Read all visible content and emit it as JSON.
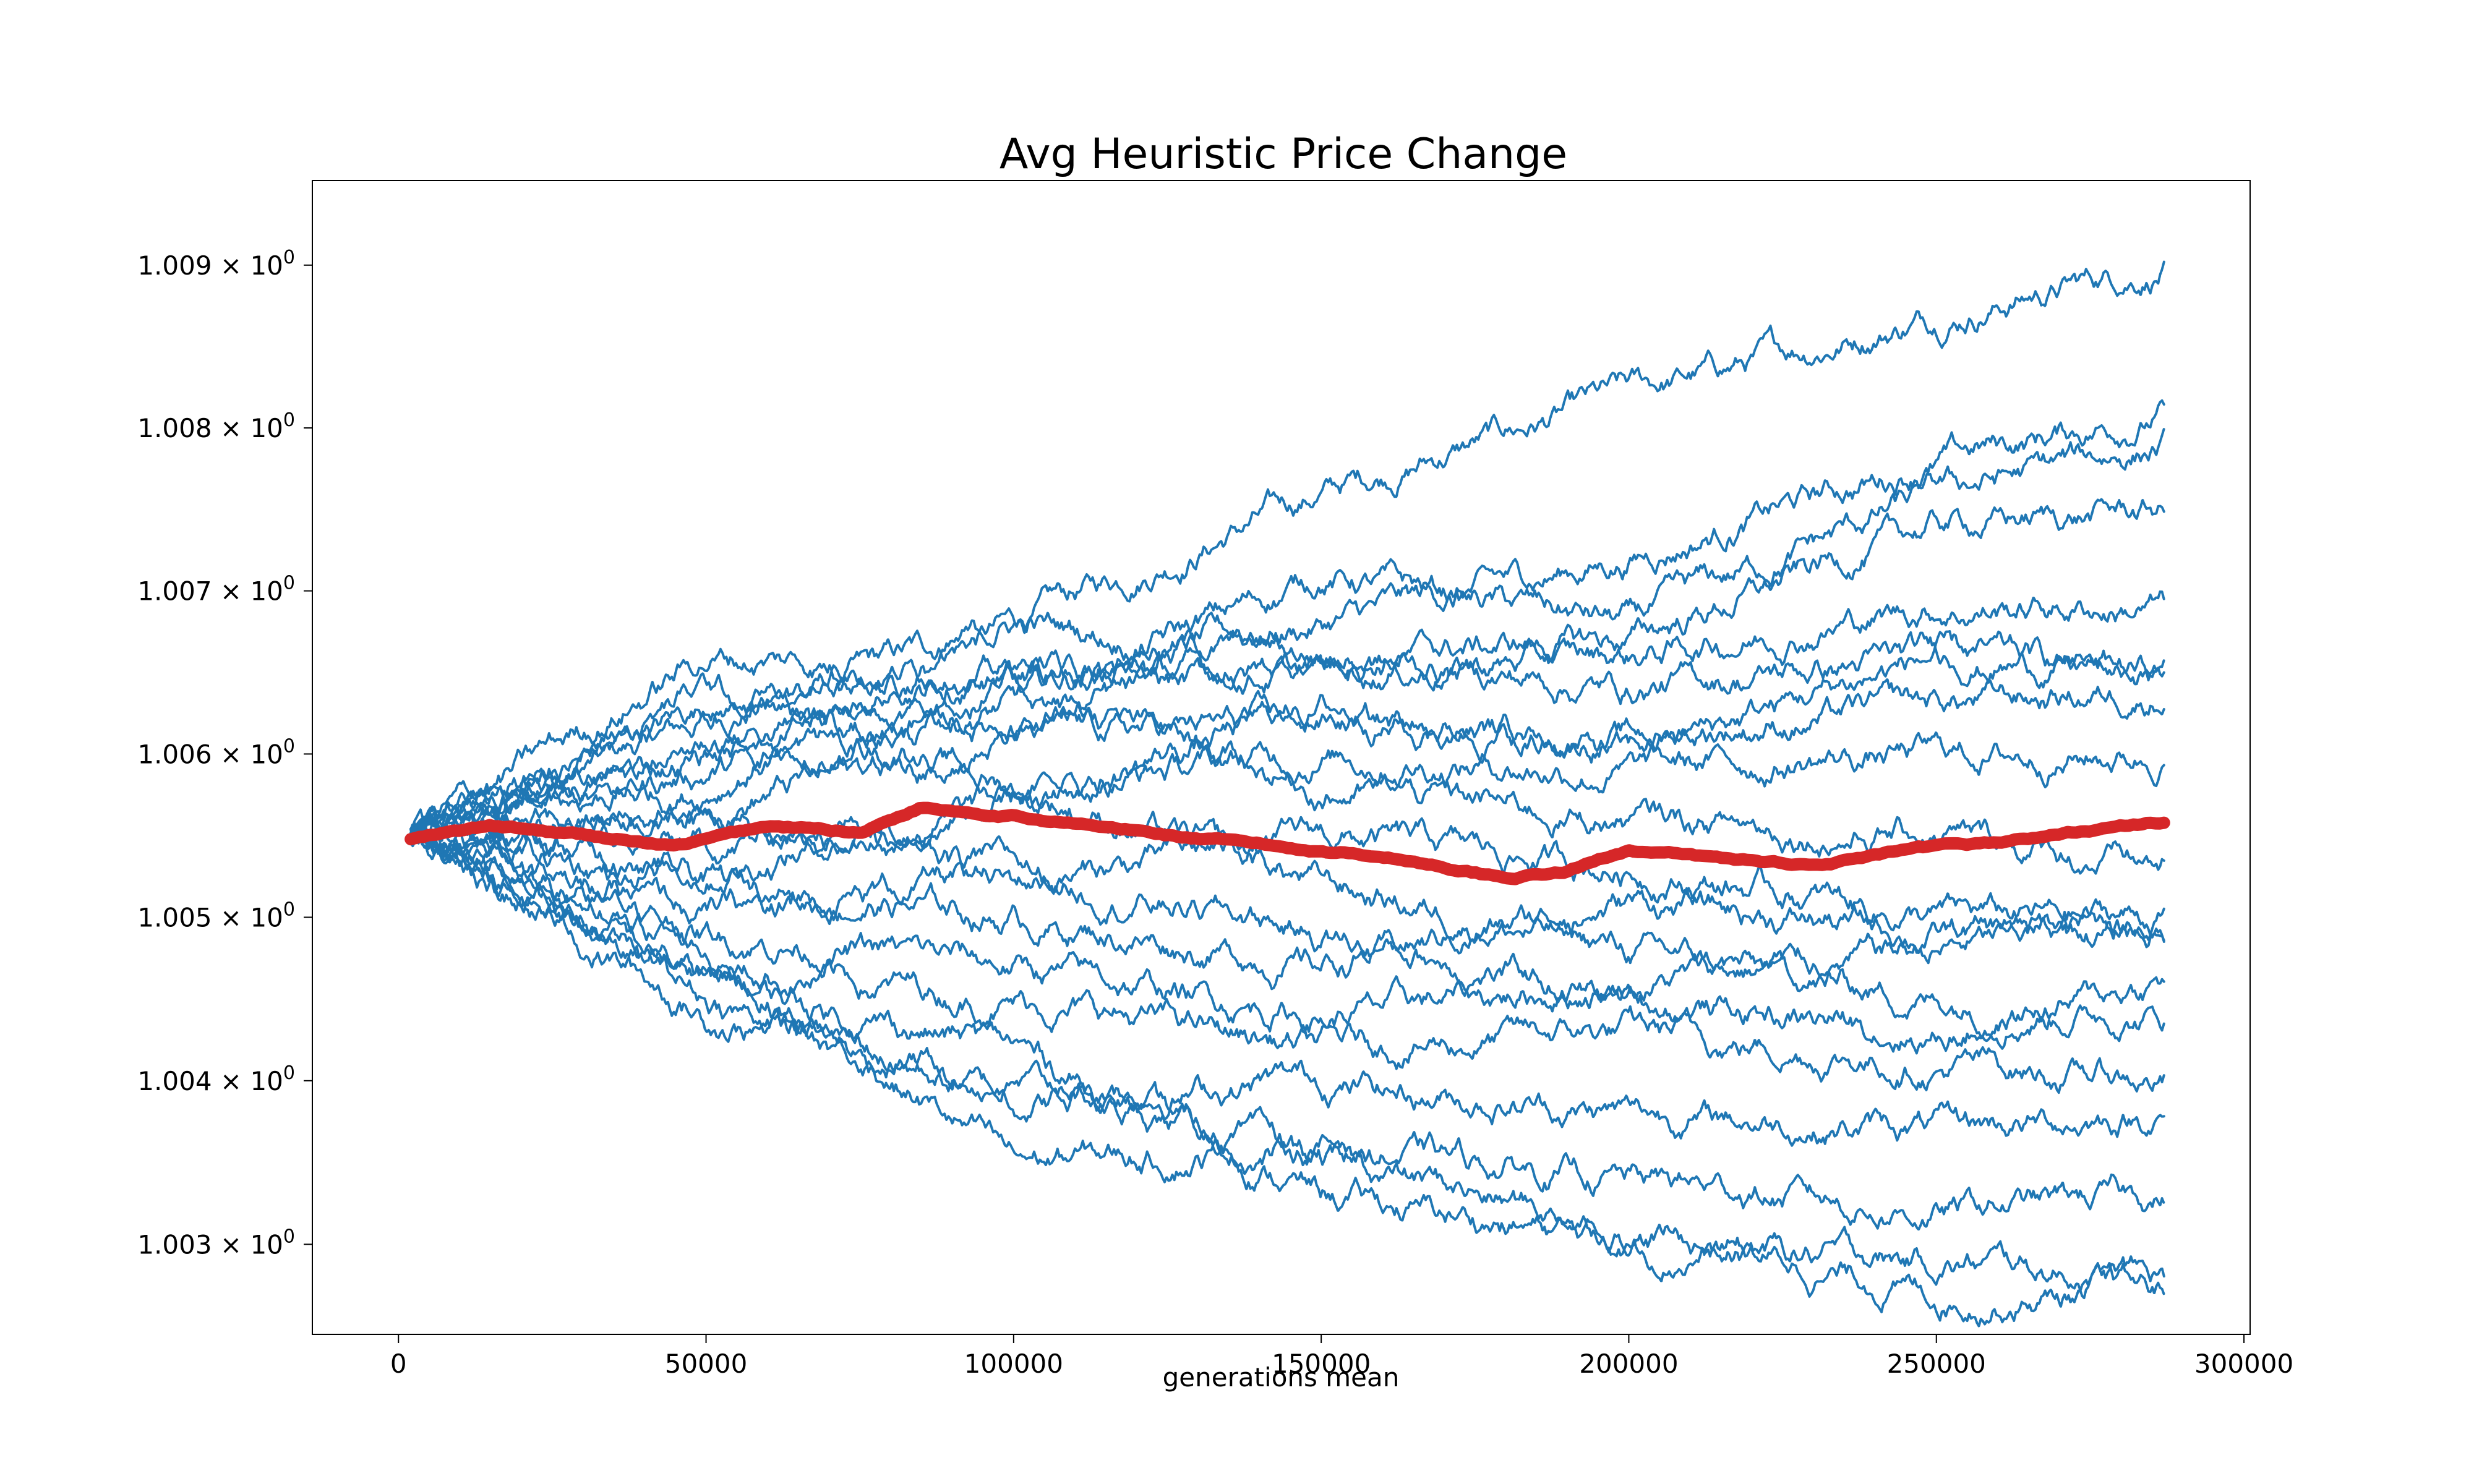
{
  "chart_data": {
    "type": "line",
    "title": "Avg Heuristic Price Change",
    "xlabel": "generations mean",
    "ylabel": "",
    "yscale": "log",
    "xlim": [
      -14000,
      301000
    ],
    "ylim": [
      1.00245,
      1.00952
    ],
    "xticks": [
      0,
      50000,
      100000,
      150000,
      200000,
      250000,
      300000
    ],
    "xtick_labels": [
      "0",
      "50000",
      "100000",
      "150000",
      "200000",
      "250000",
      "300000"
    ],
    "yticks": [
      1.003,
      1.004,
      1.005,
      1.006,
      1.007,
      1.008,
      1.009
    ],
    "ytick_labels": [
      "1.003",
      "1.004",
      "1.005",
      "1.006",
      "1.007",
      "1.008",
      "1.009"
    ],
    "ytick_suffix_base": "× 10",
    "ytick_suffix_exp": "0",
    "grid": false,
    "legend": "none",
    "colors": {
      "runs": "#1f77b4",
      "mean": "#d62728"
    },
    "x_range": [
      2000,
      287000
    ],
    "runs": [
      {
        "x": [
          2000,
          50000,
          100000,
          150000,
          200000,
          250000,
          287000
        ],
        "y": [
          1.0055,
          1.0062,
          1.0068,
          1.0076,
          1.0082,
          1.0087,
          1.009
        ]
      },
      {
        "x": [
          2000,
          50000,
          100000,
          150000,
          200000,
          250000,
          287000
        ],
        "y": [
          1.0055,
          1.0063,
          1.0065,
          1.0068,
          1.0072,
          1.0078,
          1.0081
        ]
      },
      {
        "x": [
          2000,
          50000,
          100000,
          150000,
          200000,
          250000,
          287000
        ],
        "y": [
          1.0055,
          1.0059,
          1.0063,
          1.0071,
          1.0068,
          1.0076,
          1.0079
        ]
      },
      {
        "x": [
          2000,
          50000,
          100000,
          150000,
          200000,
          250000,
          287000
        ],
        "y": [
          1.0055,
          1.0058,
          1.0068,
          1.0066,
          1.0067,
          1.0074,
          1.0075
        ]
      },
      {
        "x": [
          2000,
          50000,
          100000,
          150000,
          200000,
          250000,
          287000
        ],
        "y": [
          1.0055,
          1.0066,
          1.0065,
          1.0065,
          1.0066,
          1.0069,
          1.0069
        ]
      },
      {
        "x": [
          2000,
          50000,
          100000,
          150000,
          200000,
          250000,
          287000
        ],
        "y": [
          1.0055,
          1.006,
          1.0062,
          1.0066,
          1.0064,
          1.0066,
          1.0065
        ]
      },
      {
        "x": [
          2000,
          50000,
          100000,
          150000,
          200000,
          250000,
          287000
        ],
        "y": [
          1.0055,
          1.0057,
          1.0061,
          1.0062,
          1.0061,
          1.0063,
          1.0064
        ]
      },
      {
        "x": [
          2000,
          50000,
          100000,
          150000,
          200000,
          250000,
          287000
        ],
        "y": [
          1.0055,
          1.0054,
          1.0058,
          1.006,
          1.0059,
          1.006,
          1.006
        ]
      },
      {
        "x": [
          2000,
          50000,
          100000,
          150000,
          200000,
          250000,
          287000
        ],
        "y": [
          1.0055,
          1.0056,
          1.0052,
          1.0055,
          1.0053,
          1.005,
          1.005
        ]
      },
      {
        "x": [
          2000,
          50000,
          100000,
          150000,
          200000,
          250000,
          287000
        ],
        "y": [
          1.0055,
          1.0052,
          1.005,
          1.0047,
          1.0051,
          1.0049,
          1.0049
        ]
      },
      {
        "x": [
          2000,
          50000,
          100000,
          150000,
          200000,
          250000,
          287000
        ],
        "y": [
          1.0055,
          1.0049,
          1.0047,
          1.0044,
          1.0046,
          1.0048,
          1.005
        ]
      },
      {
        "x": [
          2000,
          50000,
          100000,
          150000,
          200000,
          250000,
          287000
        ],
        "y": [
          1.0055,
          1.0047,
          1.0045,
          1.0042,
          1.0043,
          1.0041,
          1.004
        ]
      },
      {
        "x": [
          2000,
          50000,
          100000,
          150000,
          200000,
          250000,
          287000
        ],
        "y": [
          1.0055,
          1.0045,
          1.0039,
          1.004,
          1.0038,
          1.0037,
          1.0038
        ]
      },
      {
        "x": [
          2000,
          50000,
          100000,
          150000,
          200000,
          250000,
          287000
        ],
        "y": [
          1.0055,
          1.0048,
          1.0035,
          1.0036,
          1.0034,
          1.0032,
          1.0033
        ]
      },
      {
        "x": [
          2000,
          50000,
          100000,
          150000,
          200000,
          250000,
          287000
        ],
        "y": [
          1.0055,
          1.0046,
          1.0042,
          1.0033,
          1.003,
          1.0029,
          1.0028
        ]
      },
      {
        "x": [
          2000,
          50000,
          100000,
          150000,
          200000,
          250000,
          287000
        ],
        "y": [
          1.0055,
          1.0044,
          1.004,
          1.0035,
          1.0031,
          1.0027,
          1.0027
        ]
      },
      {
        "x": [
          2000,
          50000,
          100000,
          150000,
          200000,
          250000,
          287000
        ],
        "y": [
          1.0055,
          1.0061,
          1.0064,
          1.0058,
          1.0056,
          1.0055,
          1.0053
        ]
      },
      {
        "x": [
          2000,
          50000,
          100000,
          150000,
          200000,
          250000,
          287000
        ],
        "y": [
          1.0055,
          1.005,
          1.0053,
          1.0049,
          1.0045,
          1.0043,
          1.0046
        ]
      },
      {
        "x": [
          2000,
          50000,
          100000,
          150000,
          200000,
          250000,
          287000
        ],
        "y": [
          1.0055,
          1.0064,
          1.0058,
          1.0052,
          1.0048,
          1.0045,
          1.0044
        ]
      },
      {
        "x": [
          2000,
          50000,
          100000,
          150000,
          200000,
          250000,
          287000
        ],
        "y": [
          1.0055,
          1.0053,
          1.0057,
          1.0063,
          1.006,
          1.0066,
          1.0065
        ]
      }
    ],
    "mean": {
      "x": [
        2000,
        15000,
        30000,
        45000,
        60000,
        75000,
        85000,
        100000,
        115000,
        130000,
        145000,
        160000,
        180000,
        190000,
        200000,
        215000,
        230000,
        245000,
        260000,
        275000,
        287000
      ],
      "y": [
        1.00548,
        1.00555,
        1.0055,
        1.00543,
        1.00555,
        1.00552,
        1.00568,
        1.00563,
        1.00555,
        1.00548,
        1.00542,
        1.00538,
        1.00525,
        1.00528,
        1.00542,
        1.00535,
        1.00532,
        1.0054,
        1.00545,
        1.00553,
        1.00558
      ]
    }
  }
}
